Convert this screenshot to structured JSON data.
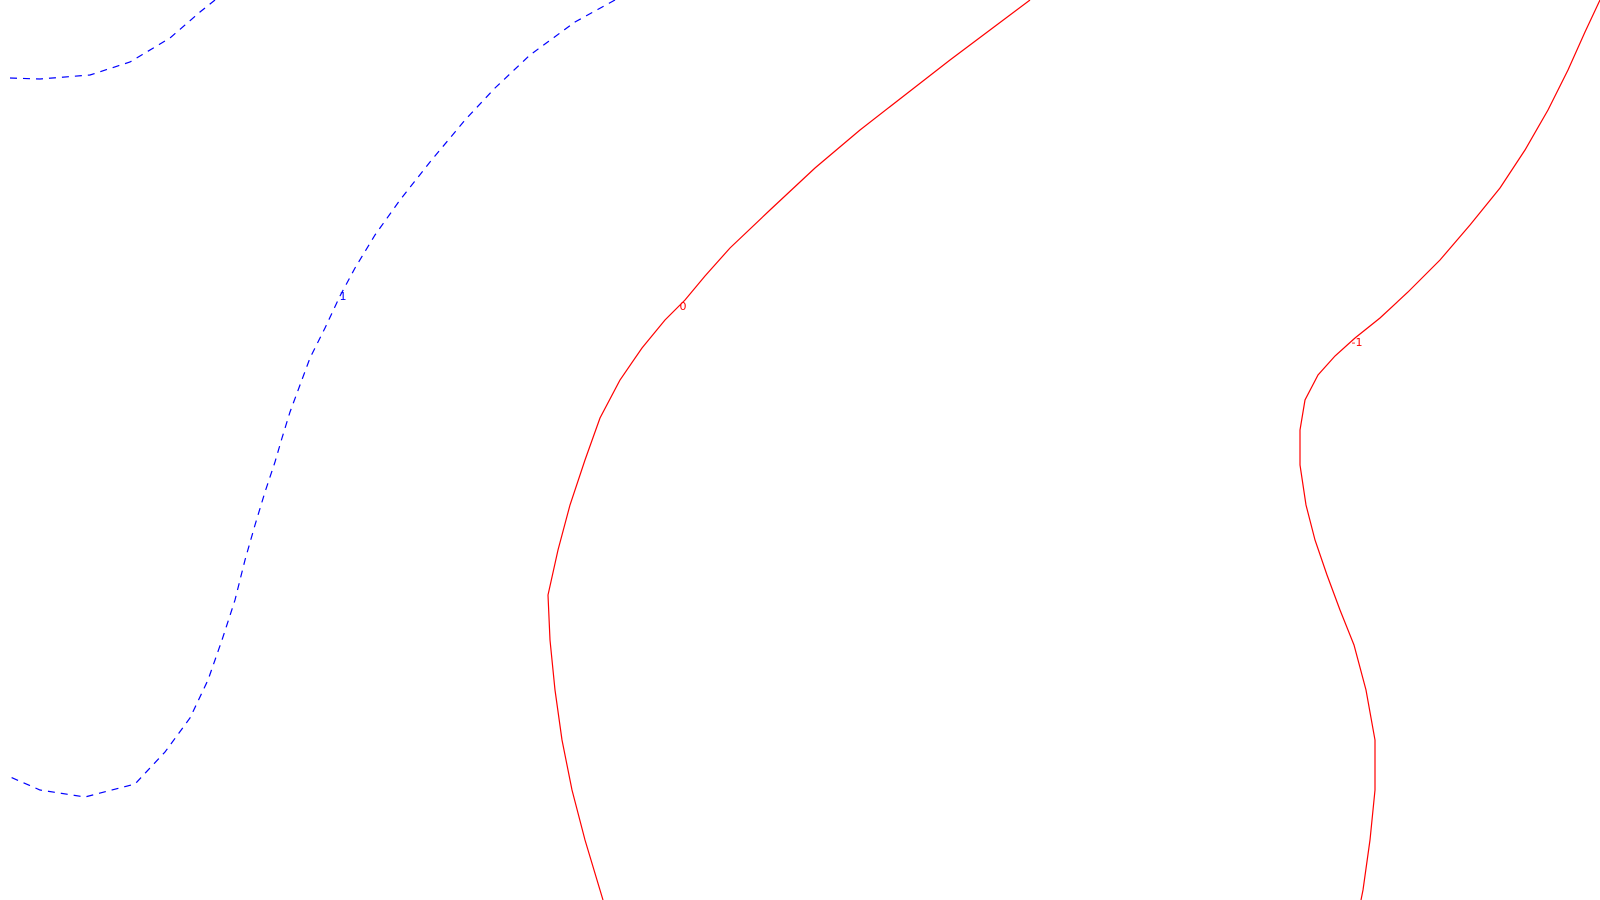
{
  "chart_data": {
    "type": "contour",
    "grid": false,
    "legend": "none",
    "colors": {
      "positive": "#0000ff",
      "zero": "#ff0000",
      "negative": "#ff0000"
    },
    "contours": [
      {
        "level": 1,
        "label": "1",
        "color": "#0000ff",
        "style": "dashed"
      },
      {
        "level": 0,
        "label": "0",
        "color": "#ff0000",
        "style": "solid"
      },
      {
        "level": -1,
        "label": "-1",
        "color": "#ff0000",
        "style": "solid"
      }
    ]
  }
}
